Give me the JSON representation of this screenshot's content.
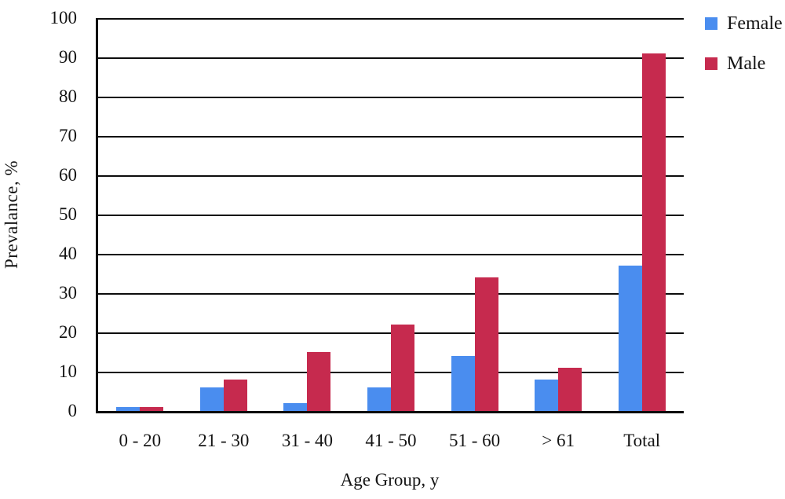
{
  "chart_data": {
    "type": "bar",
    "title": "",
    "categories": [
      "0 - 20",
      "21 - 30",
      "31 - 40",
      "41 - 50",
      "51 - 60",
      "> 61",
      "Total"
    ],
    "series": [
      {
        "name": "Female",
        "color": "#4a8def",
        "values": [
          1,
          6,
          2,
          6,
          14,
          8,
          37
        ]
      },
      {
        "name": "Male",
        "color": "#c62a4e",
        "values": [
          1,
          8,
          15,
          22,
          34,
          11,
          91
        ]
      }
    ],
    "xlabel": "Age Group, y",
    "ylabel": "Prevalance, %",
    "ylim": [
      0,
      100
    ],
    "ytick_step": 10,
    "grid": "horizontal",
    "legend_position": "top-right",
    "axis_color": "#0d0d0d",
    "background_color": "#ffffff"
  }
}
